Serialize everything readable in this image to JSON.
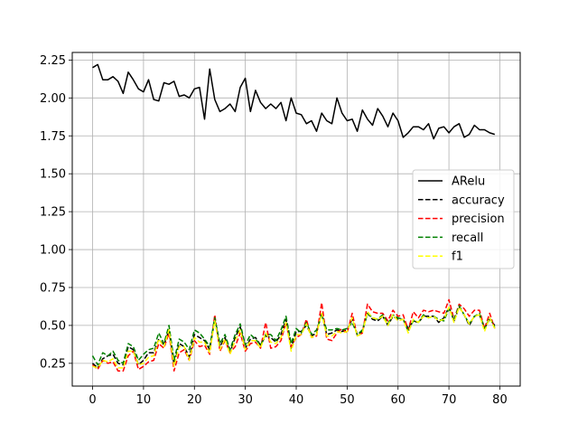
{
  "colors": {
    "ARelu": "#000000",
    "accuracy": "#000000",
    "precision": "#ff0000",
    "recall": "#008000",
    "f1": "#ffff00",
    "grid": "#b0b0b0",
    "axes": "#000000"
  },
  "chart_data": {
    "type": "line",
    "title": "",
    "xlabel": "",
    "ylabel": "",
    "xlim": [
      -4,
      84
    ],
    "ylim": [
      0.1,
      2.3
    ],
    "grid": true,
    "legend_position": "center-right",
    "x_ticks": [
      0,
      10,
      20,
      30,
      40,
      50,
      60,
      70,
      80
    ],
    "x_tick_labels": [
      "0",
      "10",
      "20",
      "30",
      "40",
      "50",
      "60",
      "70",
      "80"
    ],
    "y_ticks": [
      0.25,
      0.5,
      0.75,
      1.0,
      1.25,
      1.5,
      1.75,
      2.0,
      2.25
    ],
    "y_tick_labels": [
      "0.25",
      "0.50",
      "0.75",
      "1.00",
      "1.25",
      "1.50",
      "1.75",
      "2.00",
      "2.25"
    ],
    "series": [
      {
        "name": "ARelu",
        "style": "solid",
        "values": [
          2.2,
          2.22,
          2.12,
          2.12,
          2.14,
          2.11,
          2.03,
          2.17,
          2.12,
          2.06,
          2.04,
          2.12,
          1.99,
          1.98,
          2.1,
          2.09,
          2.11,
          2.01,
          2.02,
          2.0,
          2.06,
          2.07,
          1.86,
          2.19,
          1.99,
          1.91,
          1.93,
          1.96,
          1.91,
          2.07,
          2.13,
          1.91,
          2.05,
          1.97,
          1.93,
          1.96,
          1.93,
          1.97,
          1.85,
          2.0,
          1.9,
          1.89,
          1.83,
          1.85,
          1.78,
          1.9,
          1.85,
          1.83,
          2.0,
          1.9,
          1.85,
          1.86,
          1.78,
          1.92,
          1.86,
          1.82,
          1.93,
          1.88,
          1.81,
          1.9,
          1.85,
          1.74,
          1.77,
          1.81,
          1.81,
          1.79,
          1.83,
          1.73,
          1.8,
          1.81,
          1.77,
          1.81,
          1.83,
          1.74,
          1.76,
          1.82,
          1.79,
          1.79,
          1.77,
          1.76
        ]
      },
      {
        "name": "accuracy",
        "style": "dashed",
        "values": [
          0.25,
          0.22,
          0.28,
          0.3,
          0.31,
          0.25,
          0.24,
          0.36,
          0.34,
          0.24,
          0.27,
          0.32,
          0.32,
          0.41,
          0.37,
          0.47,
          0.24,
          0.38,
          0.36,
          0.29,
          0.44,
          0.42,
          0.4,
          0.34,
          0.54,
          0.36,
          0.42,
          0.32,
          0.42,
          0.49,
          0.35,
          0.41,
          0.42,
          0.37,
          0.43,
          0.42,
          0.39,
          0.44,
          0.54,
          0.35,
          0.46,
          0.46,
          0.5,
          0.43,
          0.45,
          0.58,
          0.44,
          0.45,
          0.47,
          0.46,
          0.47,
          0.54,
          0.44,
          0.46,
          0.58,
          0.54,
          0.53,
          0.56,
          0.5,
          0.56,
          0.54,
          0.54,
          0.48,
          0.53,
          0.52,
          0.56,
          0.56,
          0.56,
          0.52,
          0.55,
          0.62,
          0.53,
          0.62,
          0.57,
          0.5,
          0.56,
          0.57,
          0.48,
          0.54,
          0.5
        ]
      },
      {
        "name": "precision",
        "style": "dashed",
        "values": [
          0.24,
          0.21,
          0.27,
          0.25,
          0.26,
          0.2,
          0.2,
          0.3,
          0.33,
          0.21,
          0.23,
          0.26,
          0.27,
          0.38,
          0.35,
          0.45,
          0.2,
          0.32,
          0.34,
          0.27,
          0.4,
          0.36,
          0.37,
          0.31,
          0.57,
          0.33,
          0.4,
          0.32,
          0.36,
          0.45,
          0.33,
          0.38,
          0.39,
          0.35,
          0.52,
          0.35,
          0.36,
          0.4,
          0.52,
          0.36,
          0.42,
          0.44,
          0.54,
          0.42,
          0.43,
          0.65,
          0.41,
          0.4,
          0.45,
          0.48,
          0.45,
          0.58,
          0.43,
          0.45,
          0.64,
          0.59,
          0.58,
          0.58,
          0.53,
          0.6,
          0.56,
          0.57,
          0.47,
          0.59,
          0.55,
          0.6,
          0.59,
          0.6,
          0.59,
          0.58,
          0.67,
          0.54,
          0.64,
          0.61,
          0.56,
          0.6,
          0.6,
          0.48,
          0.58,
          0.48
        ]
      },
      {
        "name": "recall",
        "style": "dashed",
        "values": [
          0.3,
          0.24,
          0.32,
          0.3,
          0.33,
          0.27,
          0.25,
          0.38,
          0.36,
          0.27,
          0.31,
          0.34,
          0.35,
          0.45,
          0.38,
          0.5,
          0.27,
          0.41,
          0.39,
          0.34,
          0.47,
          0.45,
          0.41,
          0.36,
          0.55,
          0.38,
          0.44,
          0.34,
          0.44,
          0.51,
          0.37,
          0.44,
          0.41,
          0.37,
          0.44,
          0.44,
          0.4,
          0.47,
          0.56,
          0.38,
          0.48,
          0.45,
          0.52,
          0.44,
          0.47,
          0.57,
          0.47,
          0.47,
          0.48,
          0.47,
          0.48,
          0.52,
          0.44,
          0.47,
          0.58,
          0.55,
          0.54,
          0.57,
          0.51,
          0.57,
          0.55,
          0.54,
          0.46,
          0.53,
          0.52,
          0.57,
          0.55,
          0.56,
          0.54,
          0.53,
          0.61,
          0.54,
          0.63,
          0.57,
          0.51,
          0.56,
          0.58,
          0.48,
          0.55,
          0.49
        ]
      },
      {
        "name": "f1",
        "style": "dashed",
        "values": [
          0.23,
          0.22,
          0.27,
          0.26,
          0.28,
          0.22,
          0.22,
          0.33,
          0.33,
          0.24,
          0.25,
          0.29,
          0.3,
          0.41,
          0.36,
          0.47,
          0.23,
          0.36,
          0.36,
          0.27,
          0.42,
          0.39,
          0.39,
          0.32,
          0.53,
          0.34,
          0.41,
          0.31,
          0.4,
          0.47,
          0.34,
          0.4,
          0.4,
          0.35,
          0.45,
          0.39,
          0.38,
          0.42,
          0.52,
          0.33,
          0.44,
          0.44,
          0.51,
          0.42,
          0.44,
          0.58,
          0.43,
          0.43,
          0.46,
          0.45,
          0.46,
          0.55,
          0.43,
          0.45,
          0.59,
          0.55,
          0.54,
          0.56,
          0.5,
          0.57,
          0.53,
          0.54,
          0.45,
          0.54,
          0.52,
          0.56,
          0.55,
          0.56,
          0.53,
          0.54,
          0.62,
          0.52,
          0.62,
          0.57,
          0.51,
          0.56,
          0.57,
          0.46,
          0.55,
          0.48
        ]
      }
    ]
  }
}
